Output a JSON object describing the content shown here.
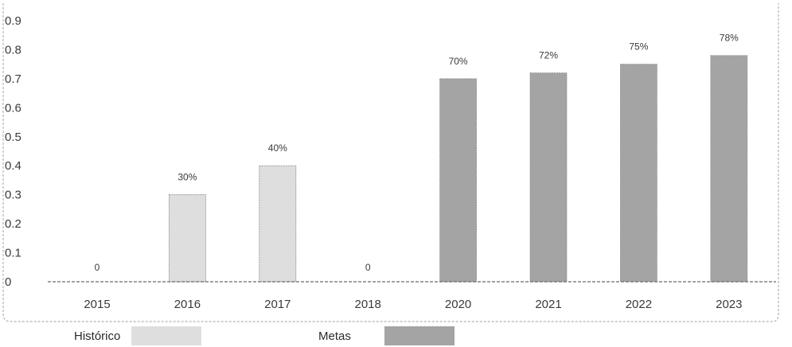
{
  "chart_data": {
    "type": "bar",
    "title": "",
    "xlabel": "",
    "ylabel": "",
    "ylim": [
      0,
      0.9
    ],
    "yticks": [
      {
        "value": 0,
        "label": "0"
      },
      {
        "value": 0.1,
        "label": "0.1"
      },
      {
        "value": 0.2,
        "label": "0.2"
      },
      {
        "value": 0.3,
        "label": "0.3"
      },
      {
        "value": 0.4,
        "label": "0.4"
      },
      {
        "value": 0.5,
        "label": "0.5"
      },
      {
        "value": 0.6,
        "label": "0.6"
      },
      {
        "value": 0.7,
        "label": "0.7"
      },
      {
        "value": 0.8,
        "label": "0.8"
      },
      {
        "value": 0.9,
        "label": "0.9"
      }
    ],
    "categories": [
      "2015",
      "2016",
      "2017",
      "2018",
      "2020",
      "2021",
      "2022",
      "2023"
    ],
    "values": [
      0,
      0.3,
      0.4,
      0,
      0.7,
      0.72,
      0.75,
      0.78
    ],
    "bar_series": [
      "Histórico",
      "Histórico",
      "Histórico",
      "Histórico",
      "Metas",
      "Metas",
      "Metas",
      "Metas"
    ],
    "data_labels": [
      "0",
      "30%",
      "40%",
      "0",
      "70%",
      "72%",
      "75%",
      "78%"
    ],
    "series": [
      {
        "name": "Histórico",
        "color": "#dedede"
      },
      {
        "name": "Metas",
        "color": "#a4a4a4"
      }
    ],
    "grid": false,
    "legend": "bottom"
  }
}
